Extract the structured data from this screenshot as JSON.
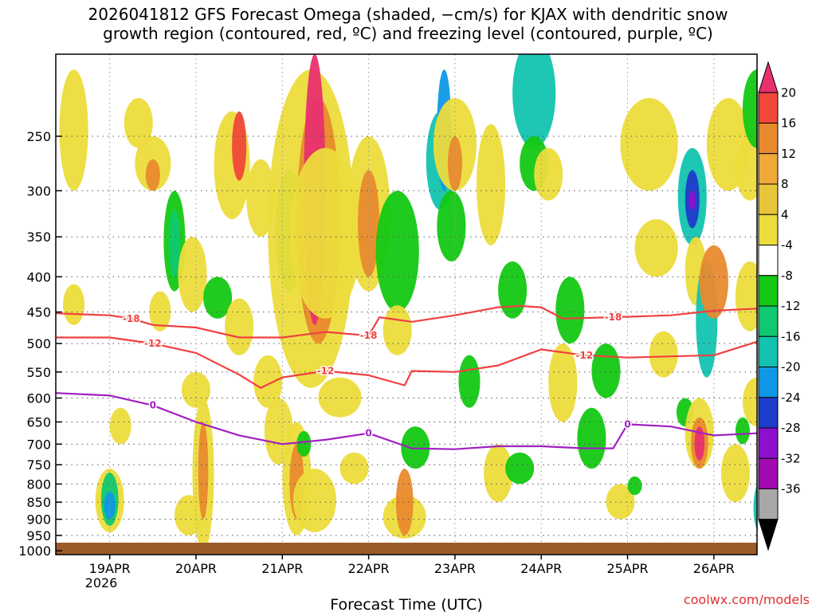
{
  "title_line1": "2026041812 GFS Forecast Omega (shaded, −cm/s) for KJAX with dendritic snow",
  "title_line2": "growth region (contoured, red, ºC) and freezing level (contoured, purple, ºC)",
  "xlabel": "Forecast Time (UTC)",
  "credit": "coolwx.com/models",
  "year_label": "2026",
  "chart_data": {
    "type": "heatmap",
    "x_ticks": [
      "19APR",
      "20APR",
      "21APR",
      "22APR",
      "23APR",
      "24APR",
      "25APR",
      "26APR"
    ],
    "x_range_hours": [
      -15,
      180
    ],
    "y_ticks": [
      250,
      300,
      350,
      400,
      450,
      500,
      550,
      600,
      650,
      700,
      750,
      800,
      850,
      900,
      950,
      1000
    ],
    "y_range_hpa": [
      190,
      1013
    ],
    "y_scale": "log",
    "colorbar": {
      "labels": [
        "20",
        "16",
        "12",
        "8",
        "4",
        "-4",
        "-8",
        "-12",
        "-16",
        "-20",
        "-24",
        "-28",
        "-32",
        "-36"
      ],
      "colors": [
        "#e8306e",
        "#f0483a",
        "#e98a2e",
        "#f0a93a",
        "#e8c53a",
        "#ecdc3c",
        "#ffffff",
        "#14c814",
        "#10c870",
        "#12c3b0",
        "#1098e6",
        "#1e3ccc",
        "#8c10cc",
        "#a00ab0",
        "#a8a8a8",
        "#000000"
      ]
    },
    "contours": [
      {
        "label": "-18",
        "color": "#f04040",
        "points": [
          [
            -15,
            452
          ],
          [
            0,
            455
          ],
          [
            6,
            460
          ],
          [
            12,
            470
          ],
          [
            24,
            474
          ],
          [
            36,
            490
          ],
          [
            48,
            490
          ],
          [
            60,
            481
          ],
          [
            72,
            487
          ],
          [
            75,
            458
          ],
          [
            84,
            465
          ],
          [
            96,
            455
          ],
          [
            108,
            443
          ],
          [
            114,
            441
          ],
          [
            120,
            443
          ],
          [
            126,
            460
          ],
          [
            140,
            458
          ],
          [
            156,
            455
          ],
          [
            168,
            448
          ],
          [
            180,
            445
          ]
        ]
      },
      {
        "label": "-12",
        "color": "#f04040",
        "points": [
          [
            -15,
            490
          ],
          [
            0,
            490
          ],
          [
            12,
            500
          ],
          [
            24,
            516
          ],
          [
            36,
            555
          ],
          [
            42,
            580
          ],
          [
            48,
            560
          ],
          [
            60,
            548
          ],
          [
            72,
            556
          ],
          [
            82,
            575
          ],
          [
            84,
            548
          ],
          [
            96,
            550
          ],
          [
            108,
            538
          ],
          [
            120,
            510
          ],
          [
            132,
            520
          ],
          [
            144,
            524
          ],
          [
            168,
            520
          ],
          [
            180,
            497
          ]
        ]
      },
      {
        "label": "0",
        "color": "#a020c0",
        "points": [
          [
            -15,
            590
          ],
          [
            0,
            595
          ],
          [
            12,
            615
          ],
          [
            24,
            650
          ],
          [
            36,
            680
          ],
          [
            48,
            700
          ],
          [
            60,
            690
          ],
          [
            72,
            675
          ],
          [
            84,
            710
          ],
          [
            96,
            712
          ],
          [
            108,
            705
          ],
          [
            120,
            705
          ],
          [
            132,
            710
          ],
          [
            140,
            710
          ],
          [
            144,
            655
          ],
          [
            156,
            660
          ],
          [
            168,
            680
          ],
          [
            180,
            675
          ]
        ]
      }
    ]
  }
}
